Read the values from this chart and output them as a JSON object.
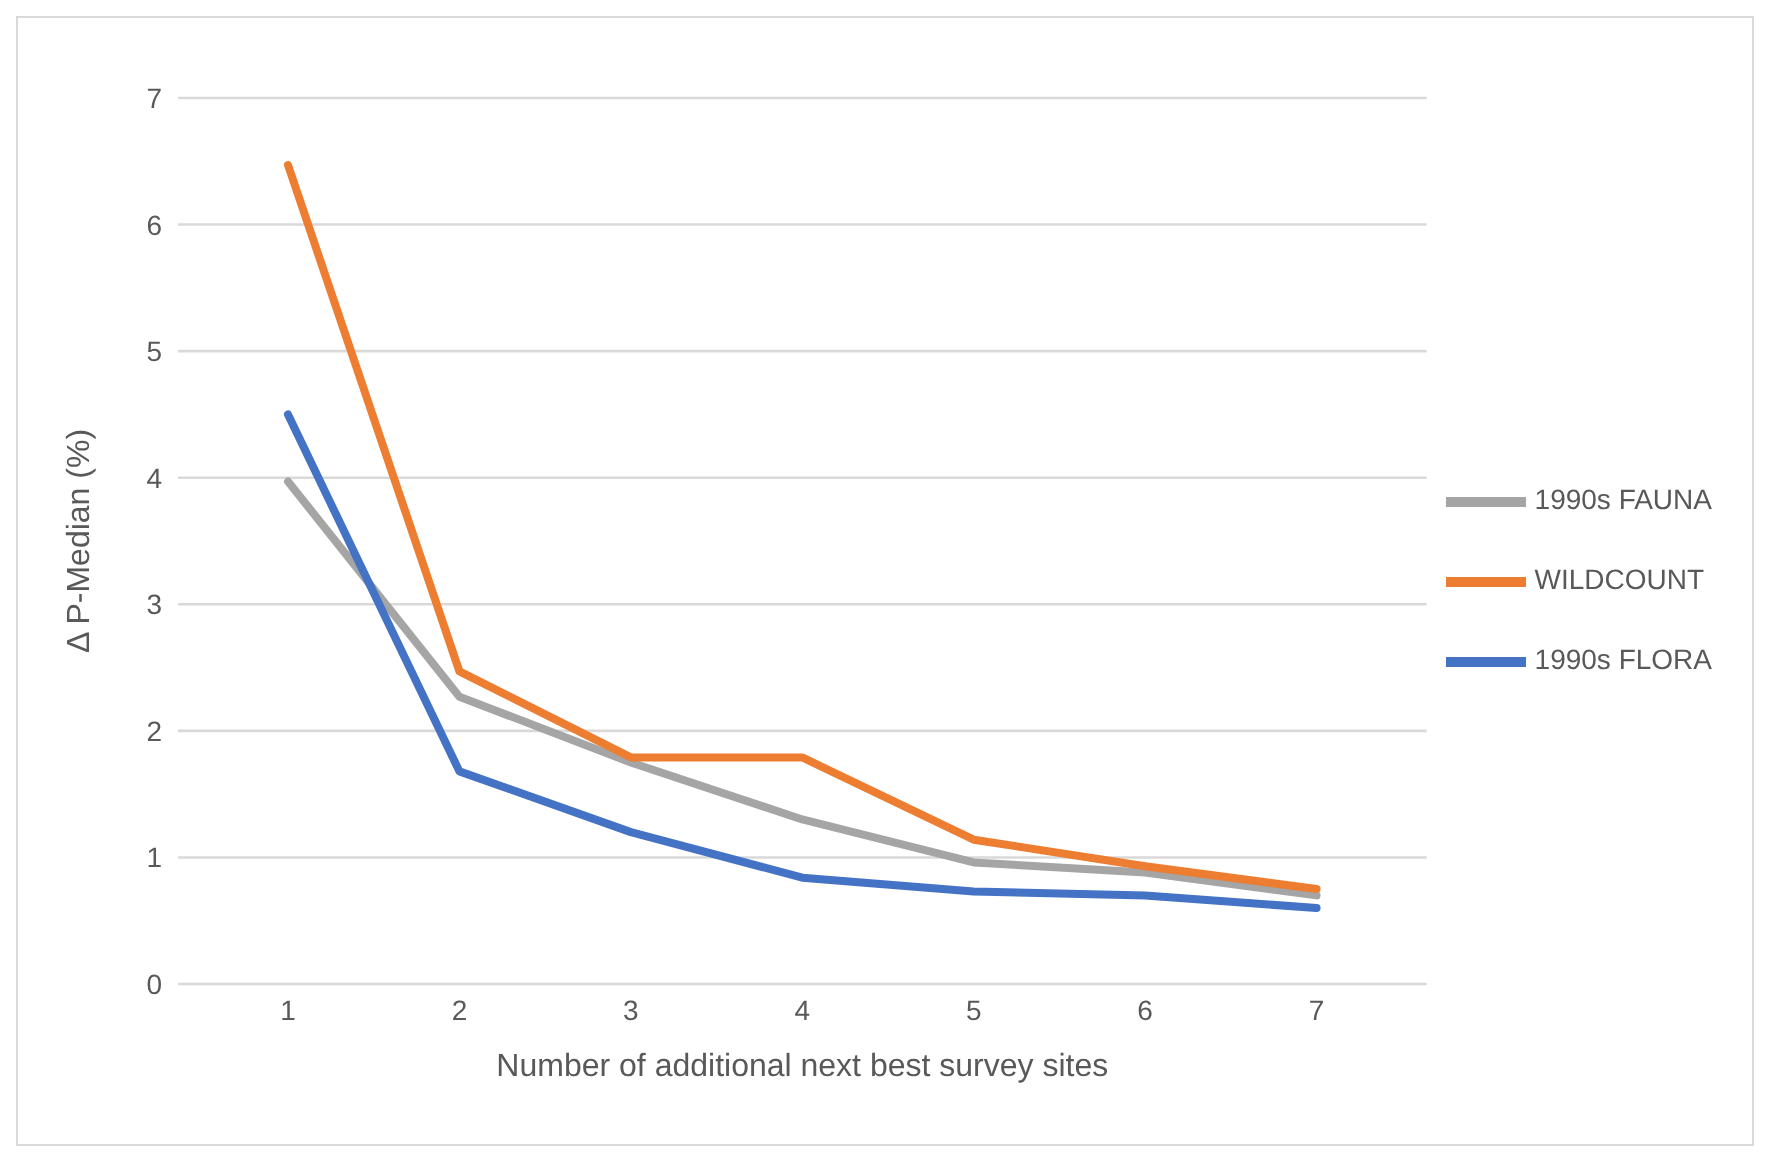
{
  "chart_data": {
    "type": "line",
    "xlabel": "Number of additional next best survey sites",
    "ylabel": "Δ P-Median (%)",
    "categories": [
      "1",
      "2",
      "3",
      "4",
      "5",
      "6",
      "7"
    ],
    "series": [
      {
        "name": "1990s FAUNA",
        "color": "#a5a5a5",
        "values": [
          3.97,
          2.27,
          1.75,
          1.3,
          0.96,
          0.88,
          0.7
        ]
      },
      {
        "name": "WILDCOUNT",
        "color": "#ed7d31",
        "values": [
          6.47,
          2.47,
          1.79,
          1.79,
          1.14,
          0.93,
          0.75
        ]
      },
      {
        "name": "1990s FLORA",
        "color": "#4472c4",
        "values": [
          4.5,
          1.68,
          1.2,
          0.84,
          0.73,
          0.7,
          0.6
        ]
      }
    ],
    "ylim": [
      0,
      7
    ],
    "yticks": [
      0,
      1,
      2,
      3,
      4,
      5,
      6,
      7
    ],
    "grid": "y",
    "legend": "right",
    "marker": "none",
    "line_style": "solid"
  }
}
